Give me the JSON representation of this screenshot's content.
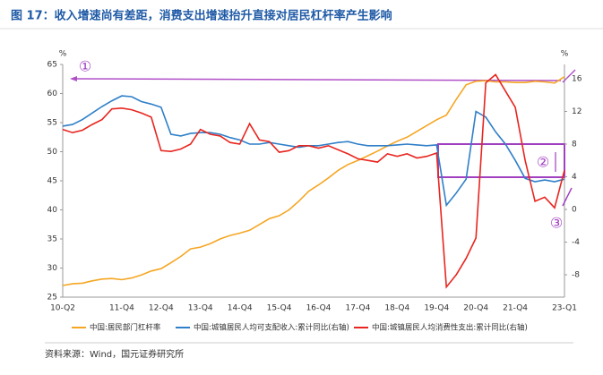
{
  "chart_data": {
    "type": "line",
    "title": "图 17：收入增速尚有差距，消费支出增速抬升直接对居民杠杆率产生影响",
    "y_unit": "%",
    "y2_unit": "%",
    "source": "资料来源：Wind，国元证券研究所",
    "annotations": [
      "①",
      "②",
      "③"
    ],
    "categories": [
      "10-Q2",
      null,
      null,
      null,
      null,
      null,
      "11-Q4",
      null,
      null,
      null,
      "12-Q4",
      null,
      null,
      null,
      "13-Q4",
      null,
      null,
      null,
      "14-Q4",
      null,
      null,
      null,
      "15-Q4",
      null,
      null,
      null,
      "16-Q4",
      null,
      null,
      null,
      "17-Q4",
      null,
      null,
      null,
      "18-Q4",
      null,
      null,
      null,
      "19-Q4",
      null,
      null,
      null,
      "20-Q4",
      null,
      null,
      null,
      "21-Q4",
      null,
      null,
      null,
      null,
      "23-Q1"
    ],
    "ylim": [
      25,
      65
    ],
    "yticks": [
      25,
      30,
      35,
      40,
      45,
      50,
      55,
      60,
      65
    ],
    "y2lim": [
      -10.74,
      17.75
    ],
    "y2ticks": [
      -8,
      -4,
      0,
      4,
      8,
      12,
      16
    ],
    "series": [
      {
        "name": "中国:居民部门杠杆率",
        "color": "#f5a623",
        "axis": "y",
        "values": [
          27.0,
          27.3,
          27.4,
          27.8,
          28.1,
          28.2,
          28.0,
          28.3,
          28.8,
          29.5,
          29.9,
          30.9,
          32.0,
          33.3,
          33.6,
          34.2,
          35.0,
          35.6,
          36.0,
          36.5,
          37.5,
          38.5,
          39.0,
          40.0,
          41.5,
          43.2,
          44.3,
          45.5,
          46.8,
          47.8,
          48.5,
          49.3,
          50.1,
          51.0,
          51.8,
          52.5,
          53.5,
          54.5,
          55.5,
          56.3,
          59.0,
          61.5,
          62.1,
          62.2,
          62.0,
          62.0,
          61.9,
          61.9,
          62.1,
          62.0,
          61.8,
          62.9
        ]
      },
      {
        "name": "中国:城镇居民人均可支配收入:累计同比(右轴)",
        "color": "#2f7fc8",
        "axis": "y2",
        "values": [
          10.2,
          10.4,
          11.0,
          11.8,
          12.6,
          13.3,
          13.9,
          13.8,
          13.2,
          12.9,
          12.5,
          9.2,
          9.0,
          9.3,
          9.4,
          9.4,
          9.2,
          8.8,
          8.5,
          8.0,
          8.0,
          8.2,
          8.0,
          7.8,
          7.6,
          7.8,
          7.8,
          8.0,
          8.2,
          8.3,
          8.0,
          7.8,
          7.8,
          7.8,
          7.9,
          8.0,
          7.9,
          7.8,
          7.9,
          0.5,
          2.0,
          3.7,
          12.0,
          11.3,
          9.5,
          8.0,
          6.0,
          3.8,
          3.4,
          3.6,
          3.4,
          3.7
        ]
      },
      {
        "name": "中国:城镇居民人均消费性支出:累计同比(右轴)",
        "color": "#e8251f",
        "axis": "y2",
        "values": [
          9.8,
          9.4,
          9.7,
          10.4,
          11.0,
          12.3,
          12.4,
          12.2,
          11.8,
          11.3,
          7.2,
          7.1,
          7.4,
          8.0,
          9.8,
          9.2,
          9.0,
          8.2,
          8.0,
          10.5,
          8.5,
          8.3,
          7.0,
          7.2,
          7.8,
          7.8,
          7.5,
          7.8,
          7.3,
          6.8,
          6.2,
          6.0,
          5.8,
          6.8,
          6.5,
          6.8,
          6.3,
          6.5,
          6.9,
          -9.5,
          -8.0,
          -6.0,
          -3.5,
          15.5,
          16.5,
          14.5,
          12.5,
          6.0,
          1.0,
          1.5,
          0.2,
          4.8
        ]
      }
    ]
  }
}
